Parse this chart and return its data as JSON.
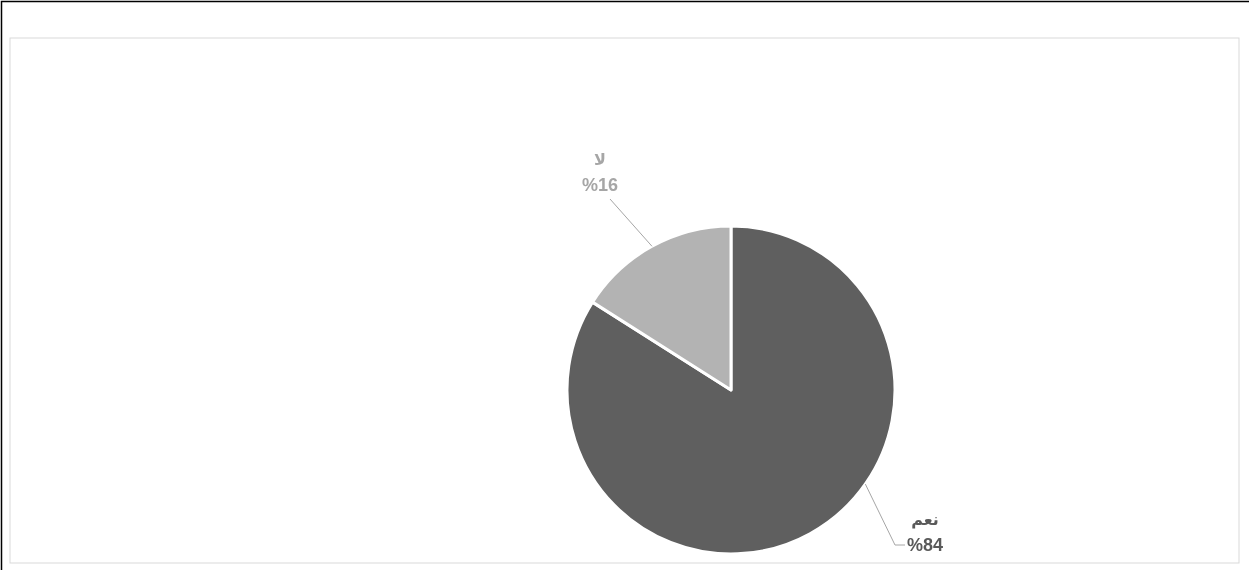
{
  "chart_data": {
    "type": "pie",
    "categories": [
      "نعم",
      "لا"
    ],
    "values": [
      84,
      16
    ],
    "colors": [
      "#5f5f5f",
      "#b3b3b3"
    ],
    "value_labels": [
      "%84",
      "%16"
    ]
  }
}
